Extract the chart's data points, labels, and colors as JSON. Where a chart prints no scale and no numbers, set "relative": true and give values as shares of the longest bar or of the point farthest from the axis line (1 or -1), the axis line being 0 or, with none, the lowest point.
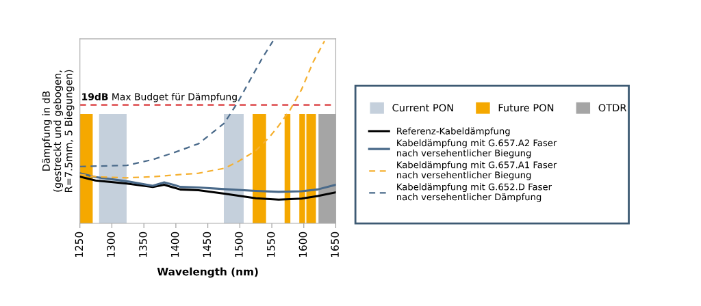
{
  "chart_data": {
    "type": "line",
    "relative": true,
    "xlabel": "Wavelength (nm)",
    "ylabel": "Dämpfung in dB\n(gestreckt und gebogen,\nR=7.5mm, 5 Biegungen)",
    "xlim": [
      1250,
      1650
    ],
    "xticks": [
      1250,
      1300,
      1350,
      1400,
      1450,
      1500,
      1550,
      1600,
      1650
    ],
    "grid": false,
    "legend": "right",
    "series": [
      {
        "name": "Current PON",
        "type": "area",
        "color": "#c5d0dc",
        "x": [
          1280,
          1323
        ],
        "values": [
          0.6,
          0.6
        ]
      },
      {
        "type": "area",
        "color": "#c5d0dc",
        "x": [
          1475,
          1506
        ],
        "values": [
          0.6,
          0.6
        ]
      },
      {
        "name": "Future PON",
        "type": "area",
        "color": "#f5a800",
        "x": [
          1250,
          1270
        ],
        "values": [
          0.6,
          0.6
        ]
      },
      {
        "type": "area",
        "color": "#f5a800",
        "x": [
          1520,
          1541
        ],
        "values": [
          0.6,
          0.6
        ]
      },
      {
        "type": "area",
        "color": "#f5a800",
        "x": [
          1570,
          1579
        ],
        "values": [
          0.6,
          0.6
        ]
      },
      {
        "type": "area",
        "color": "#f5a800",
        "x": [
          1593,
          1602,
          1602,
          1604,
          1604,
          1619
        ],
        "values": [
          0.6,
          0.6,
          0,
          0,
          0.6,
          0.6
        ]
      },
      {
        "name": "OTDR",
        "type": "area",
        "color": "#a5a5a5",
        "x": [
          1623,
          1650
        ],
        "values": [
          0.6,
          0.6
        ]
      },
      {
        "name": "Referenz-Kabeldämpfung",
        "color": "#000000",
        "line_style": "solid",
        "x": [
          1250,
          1274.3,
          1323.4,
          1363.9,
          1381.8,
          1396.1,
          1406.8,
          1435.5,
          1475.6,
          1525,
          1560.8,
          1596.6,
          1621.6,
          1650
        ],
        "values": [
          0.256,
          0.235,
          0.218,
          0.2,
          0.212,
          0.197,
          0.186,
          0.182,
          0.163,
          0.138,
          0.13,
          0.136,
          0.15,
          0.17
        ]
      },
      {
        "name": "Kabeldämpfung mit G.657.A2 Faser nach versehentlicher Biegung",
        "color": "#4a6a8a",
        "line_style": "solid",
        "x": [
          1250,
          1274.3,
          1323.4,
          1363.9,
          1381.8,
          1396.1,
          1406.8,
          1435.5,
          1475.6,
          1525,
          1560.8,
          1596.6,
          1621.6,
          1650
        ],
        "values": [
          0.275,
          0.254,
          0.231,
          0.206,
          0.225,
          0.212,
          0.2,
          0.197,
          0.188,
          0.178,
          0.173,
          0.176,
          0.186,
          0.212
        ]
      },
      {
        "name": "Kabeldämpfung mit G.657.A1 Faser nach versehentlicher Biegung",
        "color": "#f5b030",
        "line_style": "dashed",
        "x": [
          1250,
          1274.3,
          1323.4,
          1363.9,
          1396.1,
          1435.5,
          1475.6,
          1496.3,
          1525,
          1546.5,
          1560.8,
          1578.7,
          1596.6,
          1614.5,
          1632.4
        ],
        "values": [
          0.269,
          0.256,
          0.25,
          0.256,
          0.265,
          0.275,
          0.302,
          0.337,
          0.399,
          0.474,
          0.536,
          0.623,
          0.735,
          0.884,
          1
        ]
      },
      {
        "name": "Kabeldämpfung mit G.652.D Faser nach versehentlicher Dämpfung",
        "color": "#4a6a8a",
        "line_style": "dashed",
        "x": [
          1250,
          1323.4,
          1363.9,
          1396.1,
          1435.5,
          1475.6,
          1496.3,
          1517.8,
          1535.7,
          1551.8
        ],
        "values": [
          0.312,
          0.318,
          0.35,
          0.387,
          0.437,
          0.549,
          0.661,
          0.798,
          0.91,
          1
        ]
      }
    ],
    "ref_lines": [
      {
        "axis": "y",
        "value": 0.65,
        "label": "19dB Max Budget für Dämpfung",
        "color": "#d9383a",
        "line_style": "dashed"
      }
    ]
  }
}
